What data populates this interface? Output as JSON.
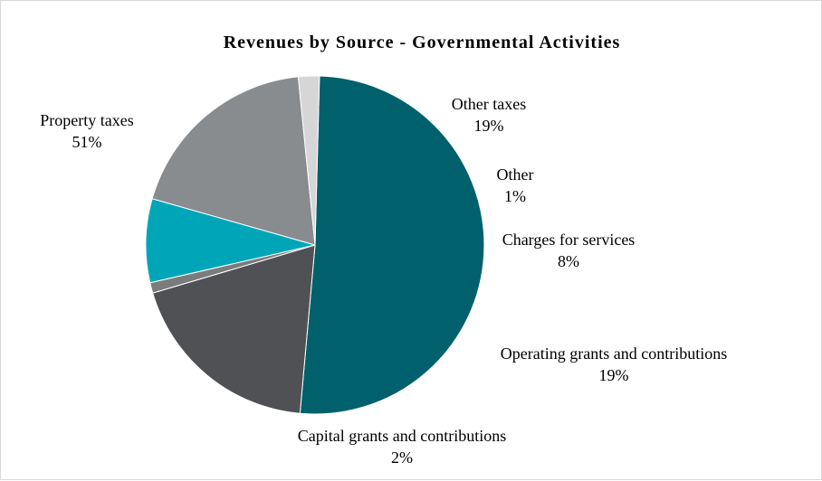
{
  "chart_data": {
    "type": "pie",
    "title": "Revenues by Source - Governmental Activities",
    "slices": [
      {
        "name": "Property taxes",
        "value": 51,
        "label": "51%",
        "color": "#00606B"
      },
      {
        "name": "Other taxes",
        "value": 19,
        "label": "19%",
        "color": "#505154"
      },
      {
        "name": "Other",
        "value": 1,
        "label": "1%",
        "color": "#7A7C7B"
      },
      {
        "name": "Charges for services",
        "value": 8,
        "label": "8%",
        "color": "#00A6B8"
      },
      {
        "name": "Operating grants and contributions",
        "value": 19,
        "label": "19%",
        "color": "#898C8E"
      },
      {
        "name": "Capital grants and contributions",
        "value": 2,
        "label": "2%",
        "color": "#D6D6D6"
      }
    ]
  }
}
